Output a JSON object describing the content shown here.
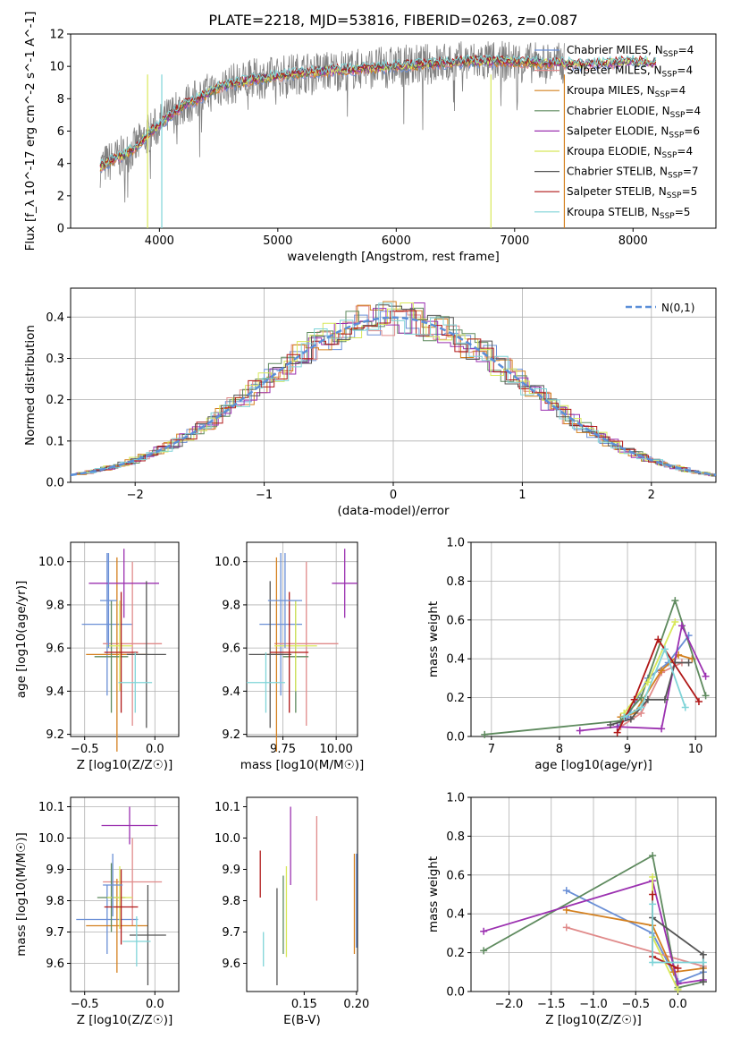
{
  "figure_title": "PLATE=2218, MJD=53816, FIBERID=0263, z=0.087",
  "series_colors": [
    "#6a8fd6",
    "#e08a8a",
    "#d4801f",
    "#5e8a5e",
    "#9b30b0",
    "#d8e85a",
    "#555555",
    "#b01818",
    "#7fd4d8"
  ],
  "chart_data": [
    {
      "id": "spectrum",
      "type": "line",
      "xlabel": "wavelength [Angstrom, rest frame]",
      "ylabel": "Flux [f_λ 10^-17 erg cm^-2 s^-1 A^-1]",
      "xlim": [
        3250,
        8700
      ],
      "ylim": [
        0,
        12
      ],
      "xticks": [
        4000,
        5000,
        6000,
        7000,
        8000
      ],
      "yticks": [
        0,
        2,
        4,
        6,
        8,
        10,
        12
      ],
      "legend_position": "upper-right",
      "series": [
        {
          "name": "Chabrier MILES, N_SSP=4",
          "color": "#6a8fd6"
        },
        {
          "name": "Salpeter MILES, N_SSP=4",
          "color": "#e08a8a"
        },
        {
          "name": "Kroupa MILES, N_SSP=4",
          "color": "#d4801f"
        },
        {
          "name": "Chabrier ELODIE, N_SSP=4",
          "color": "#5e8a5e"
        },
        {
          "name": "Salpeter ELODIE, N_SSP=6",
          "color": "#9b30b0"
        },
        {
          "name": "Kroupa ELODIE, N_SSP=4",
          "color": "#d8e85a"
        },
        {
          "name": "Chabrier STELIB, N_SSP=7",
          "color": "#555555"
        },
        {
          "name": "Salpeter STELIB, N_SSP=5",
          "color": "#b01818"
        },
        {
          "name": "Kroupa STELIB, N_SSP=5",
          "color": "#7fd4d8"
        }
      ],
      "continuum": {
        "x": [
          3500,
          3600,
          3700,
          3800,
          3900,
          4000,
          4100,
          4200,
          4300,
          4400,
          4500,
          4600,
          4800,
          5000,
          5200,
          5400,
          5600,
          5800,
          6000,
          6200,
          6400,
          6600,
          6800,
          7000,
          7200,
          7400,
          7600,
          7800,
          8000,
          8200
        ],
        "y": [
          3.8,
          4.2,
          4.5,
          5.0,
          5.8,
          6.4,
          7.0,
          7.6,
          7.9,
          8.3,
          8.7,
          8.9,
          9.2,
          9.4,
          9.6,
          9.7,
          9.8,
          9.9,
          10.0,
          10.1,
          10.2,
          10.3,
          10.3,
          10.3,
          10.2,
          10.2,
          10.1,
          10.2,
          10.3,
          10.2
        ]
      }
    },
    {
      "id": "residuals",
      "type": "bar",
      "xlabel": "(data-model)/error",
      "ylabel": "Normed distribution",
      "xlim": [
        -2.5,
        2.5
      ],
      "ylim": [
        0,
        0.47
      ],
      "xticks": [
        -2,
        -1,
        0,
        1,
        2
      ],
      "yticks": [
        0.0,
        0.1,
        0.2,
        0.3,
        0.4
      ],
      "legend_position": "upper-right",
      "reference_label": "N(0,1)",
      "bin_width": 0.1
    },
    {
      "id": "age_vs_Z",
      "type": "scatter",
      "xlabel": "Z [log10(Z/Z☉)]",
      "ylabel": "age  [log10(age/yr)]",
      "xlim": [
        -0.6,
        0.17
      ],
      "ylim": [
        9.19,
        10.09
      ],
      "xticks": [
        -0.5,
        0.0
      ],
      "yticks": [
        9.2,
        9.4,
        9.6,
        9.8,
        10.0
      ],
      "points": [
        {
          "x": -0.34,
          "y": 9.71,
          "xerr": 0.18,
          "yerr": 0.33
        },
        {
          "x": -0.16,
          "y": 9.62,
          "xerr": 0.21,
          "yerr": 0.38
        },
        {
          "x": -0.27,
          "y": 9.57,
          "xerr": 0.22,
          "yerr": 0.45
        },
        {
          "x": -0.31,
          "y": 9.56,
          "xerr": 0.12,
          "yerr": 0.26
        },
        {
          "x": -0.22,
          "y": 9.9,
          "xerr": 0.25,
          "yerr": 0.16
        },
        {
          "x": -0.25,
          "y": 9.61,
          "xerr": 0.09,
          "yerr": 0.21
        },
        {
          "x": -0.06,
          "y": 9.57,
          "xerr": 0.14,
          "yerr": 0.34
        },
        {
          "x": -0.24,
          "y": 9.58,
          "xerr": 0.12,
          "yerr": 0.28
        },
        {
          "x": -0.14,
          "y": 9.44,
          "xerr": 0.12,
          "yerr": 0.14
        },
        {
          "x": -0.33,
          "y": 9.82,
          "xerr": 0.06,
          "yerr": 0.22
        }
      ]
    },
    {
      "id": "age_vs_mass",
      "type": "scatter",
      "xlabel": "mass [log10(M/M☉)]",
      "ylabel": "",
      "xlim": [
        9.58,
        10.1
      ],
      "ylim": [
        9.19,
        10.09
      ],
      "xticks": [
        9.75,
        10.0
      ],
      "yticks": [
        9.2,
        9.4,
        9.6,
        9.8,
        10.0
      ],
      "points": [
        {
          "x": 9.74,
          "y": 9.71,
          "xerr": 0.1,
          "yerr": 0.33
        },
        {
          "x": 9.86,
          "y": 9.62,
          "xerr": 0.15,
          "yerr": 0.38
        },
        {
          "x": 9.72,
          "y": 9.57,
          "xerr": 0.06,
          "yerr": 0.45
        },
        {
          "x": 9.81,
          "y": 9.56,
          "xerr": 0.06,
          "yerr": 0.26
        },
        {
          "x": 10.04,
          "y": 9.9,
          "xerr": 0.06,
          "yerr": 0.16
        },
        {
          "x": 9.81,
          "y": 9.61,
          "xerr": 0.1,
          "yerr": 0.21
        },
        {
          "x": 9.69,
          "y": 9.57,
          "xerr": 0.1,
          "yerr": 0.34
        },
        {
          "x": 9.78,
          "y": 9.58,
          "xerr": 0.09,
          "yerr": 0.28
        },
        {
          "x": 9.67,
          "y": 9.44,
          "xerr": 0.09,
          "yerr": 0.14
        },
        {
          "x": 9.76,
          "y": 9.82,
          "xerr": 0.08,
          "yerr": 0.22
        }
      ]
    },
    {
      "id": "weight_vs_age",
      "type": "line",
      "xlabel": "age  [log10(age/yr)]",
      "ylabel": "mass weight",
      "xlim": [
        6.7,
        10.3
      ],
      "ylim": [
        0,
        1.0
      ],
      "xticks": [
        7,
        8,
        9,
        10
      ],
      "yticks": [
        0.0,
        0.2,
        0.4,
        0.6,
        0.8,
        1.0
      ],
      "series": [
        {
          "color": "#6a8fd6",
          "x": [
            8.85,
            9.0,
            9.3,
            9.6,
            9.9
          ],
          "y": [
            0.05,
            0.1,
            0.3,
            0.38,
            0.52
          ]
        },
        {
          "color": "#e08a8a",
          "x": [
            8.9,
            9.2,
            9.5,
            9.8
          ],
          "y": [
            0.05,
            0.12,
            0.33,
            0.38
          ]
        },
        {
          "color": "#d4801f",
          "x": [
            8.9,
            9.1,
            9.5,
            9.75,
            9.95
          ],
          "y": [
            0.1,
            0.12,
            0.34,
            0.42,
            0.4
          ]
        },
        {
          "color": "#5e8a5e",
          "x": [
            6.9,
            8.9,
            9.2,
            9.7,
            10.15
          ],
          "y": [
            0.01,
            0.08,
            0.2,
            0.7,
            0.21
          ]
        },
        {
          "color": "#9b30b0",
          "x": [
            8.3,
            8.85,
            9.5,
            9.8,
            10.15
          ],
          "y": [
            0.03,
            0.05,
            0.04,
            0.57,
            0.31
          ]
        },
        {
          "color": "#d8e85a",
          "x": [
            8.95,
            9.3,
            9.7
          ],
          "y": [
            0.12,
            0.28,
            0.59
          ]
        },
        {
          "color": "#555555",
          "x": [
            8.75,
            9.05,
            9.3,
            9.55,
            9.7,
            9.9
          ],
          "y": [
            0.06,
            0.09,
            0.19,
            0.19,
            0.38,
            0.38
          ]
        },
        {
          "color": "#b01818",
          "x": [
            8.85,
            9.1,
            9.45,
            10.05
          ],
          "y": [
            0.02,
            0.19,
            0.5,
            0.18
          ]
        },
        {
          "color": "#7fd4d8",
          "x": [
            8.95,
            9.2,
            9.55,
            9.85
          ],
          "y": [
            0.1,
            0.15,
            0.45,
            0.15
          ]
        }
      ]
    },
    {
      "id": "mass_vs_Z",
      "type": "scatter",
      "xlabel": "Z [log10(Z/Z☉)]",
      "ylabel": "mass [log10(M/M☉)]",
      "xlim": [
        -0.6,
        0.17
      ],
      "ylim": [
        9.51,
        10.13
      ],
      "xticks": [
        -0.5,
        0.0
      ],
      "yticks": [
        9.6,
        9.7,
        9.8,
        9.9,
        10.0,
        10.1
      ],
      "points": [
        {
          "x": -0.34,
          "y": 9.74,
          "xerr": 0.22,
          "yerr": 0.11
        },
        {
          "x": -0.16,
          "y": 9.86,
          "xerr": 0.21,
          "yerr": 0.14
        },
        {
          "x": -0.27,
          "y": 9.72,
          "xerr": 0.22,
          "yerr": 0.15
        },
        {
          "x": -0.31,
          "y": 9.81,
          "xerr": 0.1,
          "yerr": 0.11
        },
        {
          "x": -0.18,
          "y": 10.04,
          "xerr": 0.2,
          "yerr": 0.06
        },
        {
          "x": -0.25,
          "y": 9.81,
          "xerr": 0.09,
          "yerr": 0.1
        },
        {
          "x": -0.05,
          "y": 9.69,
          "xerr": 0.13,
          "yerr": 0.16
        },
        {
          "x": -0.24,
          "y": 9.78,
          "xerr": 0.12,
          "yerr": 0.12
        },
        {
          "x": -0.13,
          "y": 9.67,
          "xerr": 0.1,
          "yerr": 0.08
        },
        {
          "x": -0.3,
          "y": 9.85,
          "xerr": 0.07,
          "yerr": 0.1
        }
      ]
    },
    {
      "id": "mass_vs_EBV",
      "type": "scatter",
      "xlabel": "E(B-V)",
      "ylabel": "",
      "xlim": [
        0.095,
        0.201
      ],
      "ylim": [
        9.51,
        10.13
      ],
      "xticks": [
        0.15,
        0.2
      ],
      "yticks": [
        9.6,
        9.7,
        9.8,
        9.9,
        10.0,
        10.1
      ],
      "segments": [
        {
          "x": 0.108,
          "y0": 9.81,
          "y1": 9.96,
          "color": "#b01818"
        },
        {
          "x": 0.111,
          "y0": 9.59,
          "y1": 9.7,
          "color": "#7fd4d8"
        },
        {
          "x": 0.124,
          "y0": 9.53,
          "y1": 9.84,
          "color": "#555555"
        },
        {
          "x": 0.13,
          "y0": 9.63,
          "y1": 9.88,
          "color": "#5e8a5e"
        },
        {
          "x": 0.133,
          "y0": 9.62,
          "y1": 9.91,
          "color": "#d8e85a"
        },
        {
          "x": 0.137,
          "y0": 9.85,
          "y1": 10.1,
          "color": "#9b30b0"
        },
        {
          "x": 0.162,
          "y0": 9.8,
          "y1": 10.07,
          "color": "#e08a8a"
        },
        {
          "x": 0.198,
          "y0": 9.63,
          "y1": 9.95,
          "color": "#d4801f"
        },
        {
          "x": 0.2,
          "y0": 9.65,
          "y1": 9.95,
          "color": "#6a8fd6"
        }
      ]
    },
    {
      "id": "weight_vs_Z",
      "type": "line",
      "xlabel": "Z [log10(Z/Z☉)]",
      "ylabel": "mass weight",
      "xlim": [
        -2.45,
        0.45
      ],
      "ylim": [
        0,
        1.0
      ],
      "xticks": [
        -2.0,
        -1.5,
        -1.0,
        -0.5,
        0.0
      ],
      "yticks": [
        0.0,
        0.2,
        0.4,
        0.6,
        0.8,
        1.0
      ],
      "series": [
        {
          "color": "#6a8fd6",
          "x": [
            -1.32,
            -0.3,
            0.0,
            0.3
          ],
          "y": [
            0.52,
            0.3,
            0.05,
            0.1
          ]
        },
        {
          "color": "#e08a8a",
          "x": [
            -1.32,
            0.3
          ],
          "y": [
            0.33,
            0.13
          ]
        },
        {
          "color": "#d4801f",
          "x": [
            -1.32,
            -0.3,
            -0.05,
            0.3
          ],
          "y": [
            0.42,
            0.34,
            0.1,
            0.12
          ]
        },
        {
          "color": "#5e8a5e",
          "x": [
            -2.3,
            -0.3,
            0.0,
            0.3
          ],
          "y": [
            0.21,
            0.7,
            0.02,
            0.05
          ]
        },
        {
          "color": "#9b30b0",
          "x": [
            -2.3,
            -0.3,
            0.0,
            0.3
          ],
          "y": [
            0.31,
            0.57,
            0.04,
            0.06
          ]
        },
        {
          "color": "#d8e85a",
          "x": [
            -0.3,
            -0.3,
            0.0
          ],
          "y": [
            0.59,
            0.28,
            0.01
          ]
        },
        {
          "color": "#555555",
          "x": [
            -0.3,
            0.3,
            0.3
          ],
          "y": [
            0.38,
            0.19,
            0.05
          ]
        },
        {
          "color": "#b01818",
          "x": [
            -0.3,
            -0.3,
            0.0
          ],
          "y": [
            0.5,
            0.18,
            0.12
          ]
        },
        {
          "color": "#7fd4d8",
          "x": [
            -0.3,
            -0.3,
            0.3
          ],
          "y": [
            0.45,
            0.15,
            0.15
          ]
        }
      ]
    }
  ]
}
